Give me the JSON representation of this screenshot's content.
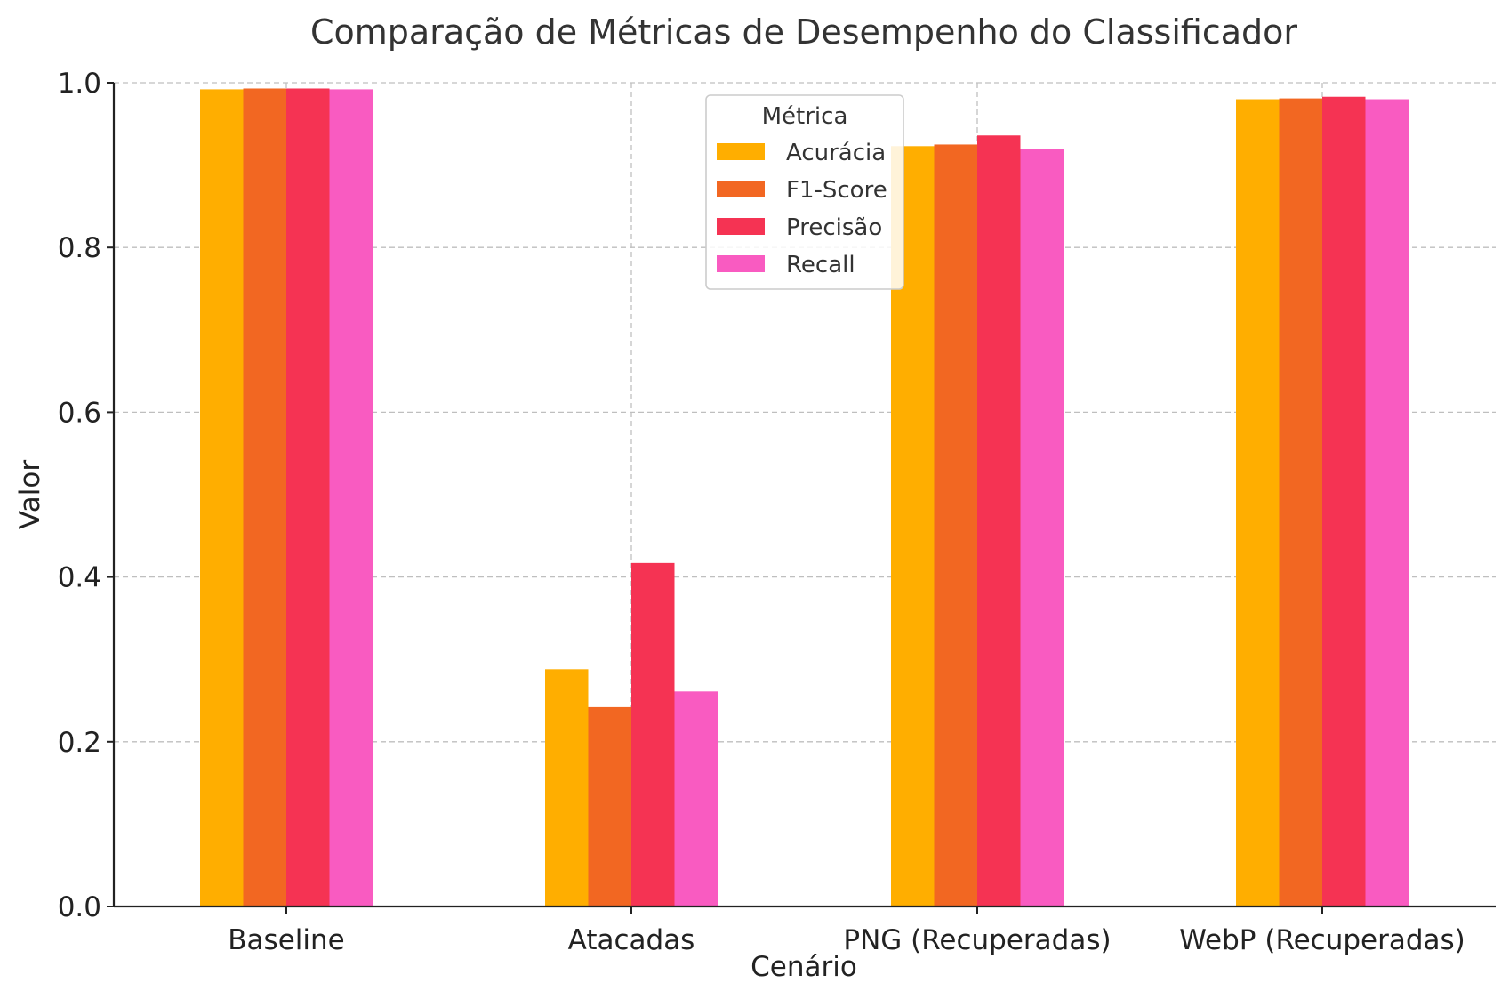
{
  "chart_data": {
    "type": "bar",
    "title": "Comparação de Métricas de Desempenho do Classificador",
    "xlabel": "Cenário",
    "ylabel": "Valor",
    "ylim": [
      0,
      1.0
    ],
    "yticks": [
      "0.0",
      "0.2",
      "0.4",
      "0.6",
      "0.8",
      "1.0"
    ],
    "ytick_values": [
      0,
      0.2,
      0.4,
      0.6,
      0.8,
      1.0
    ],
    "grid": true,
    "categories": [
      "Baseline",
      "Atacadas",
      "PNG (Recuperadas)",
      "WebP (Recuperadas)"
    ],
    "legend": {
      "title": "Métrica",
      "placement": "top-center"
    },
    "series": [
      {
        "name": "Acurácia",
        "color": "#FFAE00",
        "values": [
          0.992,
          0.288,
          0.923,
          0.98
        ]
      },
      {
        "name": "F1-Score",
        "color": "#F26722",
        "values": [
          0.993,
          0.242,
          0.925,
          0.981
        ]
      },
      {
        "name": "Precisão",
        "color": "#F53353",
        "values": [
          0.993,
          0.417,
          0.936,
          0.983
        ]
      },
      {
        "name": "Recall",
        "color": "#F95BC1",
        "values": [
          0.992,
          0.261,
          0.92,
          0.98
        ]
      }
    ]
  }
}
